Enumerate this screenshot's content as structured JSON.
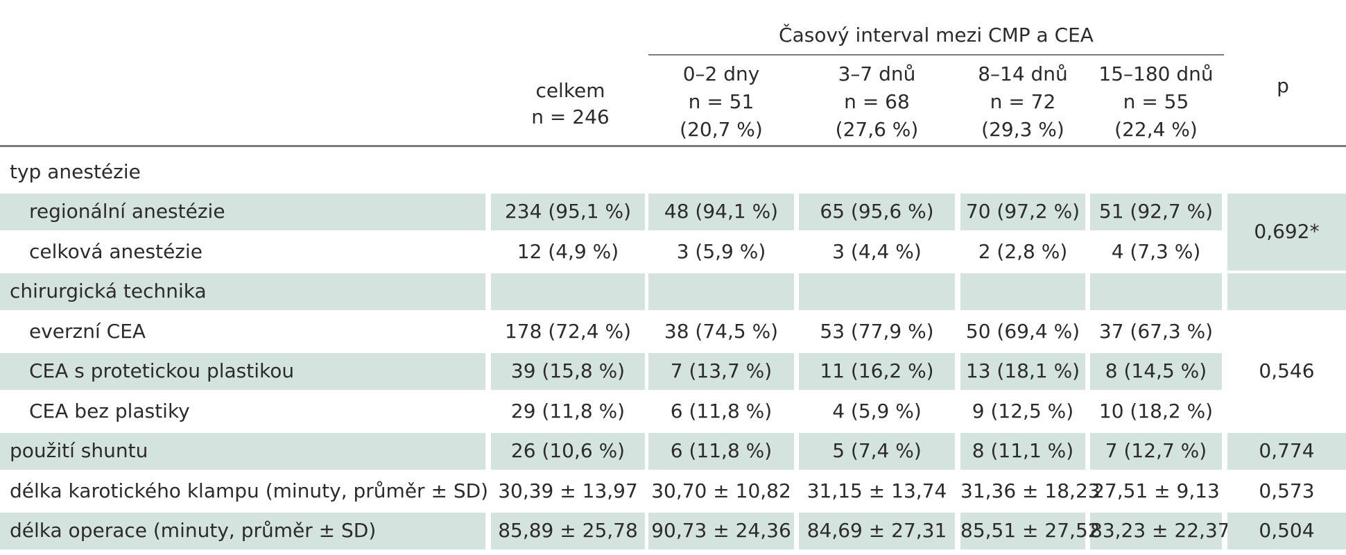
{
  "header": {
    "group_title": "Časový interval mezi CMP a CEA",
    "total": [
      "celkem",
      "n = 246"
    ],
    "cols": [
      [
        "0–2 dny",
        "n = 51",
        "(20,7 %)"
      ],
      [
        "3–7 dnů",
        "n = 68",
        "(27,6 %)"
      ],
      [
        "8–14 dnů",
        "n = 72",
        "(29,3 %)"
      ],
      [
        "15–180 dnů",
        "n = 55",
        "(22,4 %)"
      ]
    ],
    "p": "p"
  },
  "rows": [
    {
      "label": "typ anestézie",
      "indent": false,
      "shade": false,
      "values": []
    },
    {
      "label": "regionální anestézie",
      "indent": true,
      "shade": true,
      "values": [
        "234 (95,1 %)",
        "48 (94,1 %)",
        "65 (95,6 %)",
        "70 (97,2 %)",
        "51 (92,7 %)"
      ]
    },
    {
      "label": "celková anestézie",
      "indent": true,
      "shade": false,
      "values": [
        "12 (4,9 %)",
        "3 (5,9 %)",
        "3 (4,4 %)",
        "2 (2,8 %)",
        "4 (7,3 %)"
      ]
    },
    {
      "label": "chirurgická technika",
      "indent": false,
      "shade": true,
      "values": []
    },
    {
      "label": "everzní CEA",
      "indent": true,
      "shade": false,
      "values": [
        "178 (72,4 %)",
        "38 (74,5 %)",
        "53 (77,9 %)",
        "50 (69,4 %)",
        "37 (67,3 %)"
      ]
    },
    {
      "label": "CEA s protetickou plastikou",
      "indent": true,
      "shade": true,
      "values": [
        "39 (15,8 %)",
        "7 (13,7 %)",
        "11 (16,2 %)",
        "13 (18,1 %)",
        "8 (14,5 %)"
      ]
    },
    {
      "label": "CEA bez plastiky",
      "indent": true,
      "shade": false,
      "values": [
        "29 (11,8 %)",
        "6 (11,8 %)",
        "4 (5,9 %)",
        "9 (12,5 %)",
        "10 (18,2 %)"
      ]
    },
    {
      "label": "použití shuntu",
      "indent": false,
      "shade": true,
      "values": [
        "26 (10,6 %)",
        "6 (11,8 %)",
        "5 (7,4 %)",
        "8 (11,1 %)",
        "7 (12,7 %)"
      ]
    },
    {
      "label": "délka karotického klampu (minuty, průměr ± SD)",
      "indent": false,
      "shade": false,
      "values": [
        "30,39 ± 13,97",
        "30,70 ± 10,82",
        "31,15 ± 13,74",
        "31,36 ± 18,23",
        "27,51 ± 9,13"
      ]
    },
    {
      "label": "délka operace (minuty, průměr ± SD)",
      "indent": false,
      "shade": true,
      "values": [
        "85,89 ± 25,78",
        "90,73 ± 24,36",
        "84,69 ± 27,31",
        "85,51 ± 27,52",
        "83,23 ± 22,37"
      ]
    }
  ],
  "p_values": [
    {
      "value": "0,692*",
      "shade": true,
      "rows": [
        1,
        2
      ]
    },
    {
      "value": "",
      "shade": true,
      "rows": [
        3,
        3
      ]
    },
    {
      "value": "0,546",
      "shade": false,
      "rows": [
        4,
        6
      ]
    },
    {
      "value": "0,774",
      "shade": true,
      "rows": [
        7,
        7
      ]
    },
    {
      "value": "0,573",
      "shade": false,
      "rows": [
        8,
        8
      ]
    },
    {
      "value": "0,504",
      "shade": true,
      "rows": [
        9,
        9
      ]
    }
  ]
}
